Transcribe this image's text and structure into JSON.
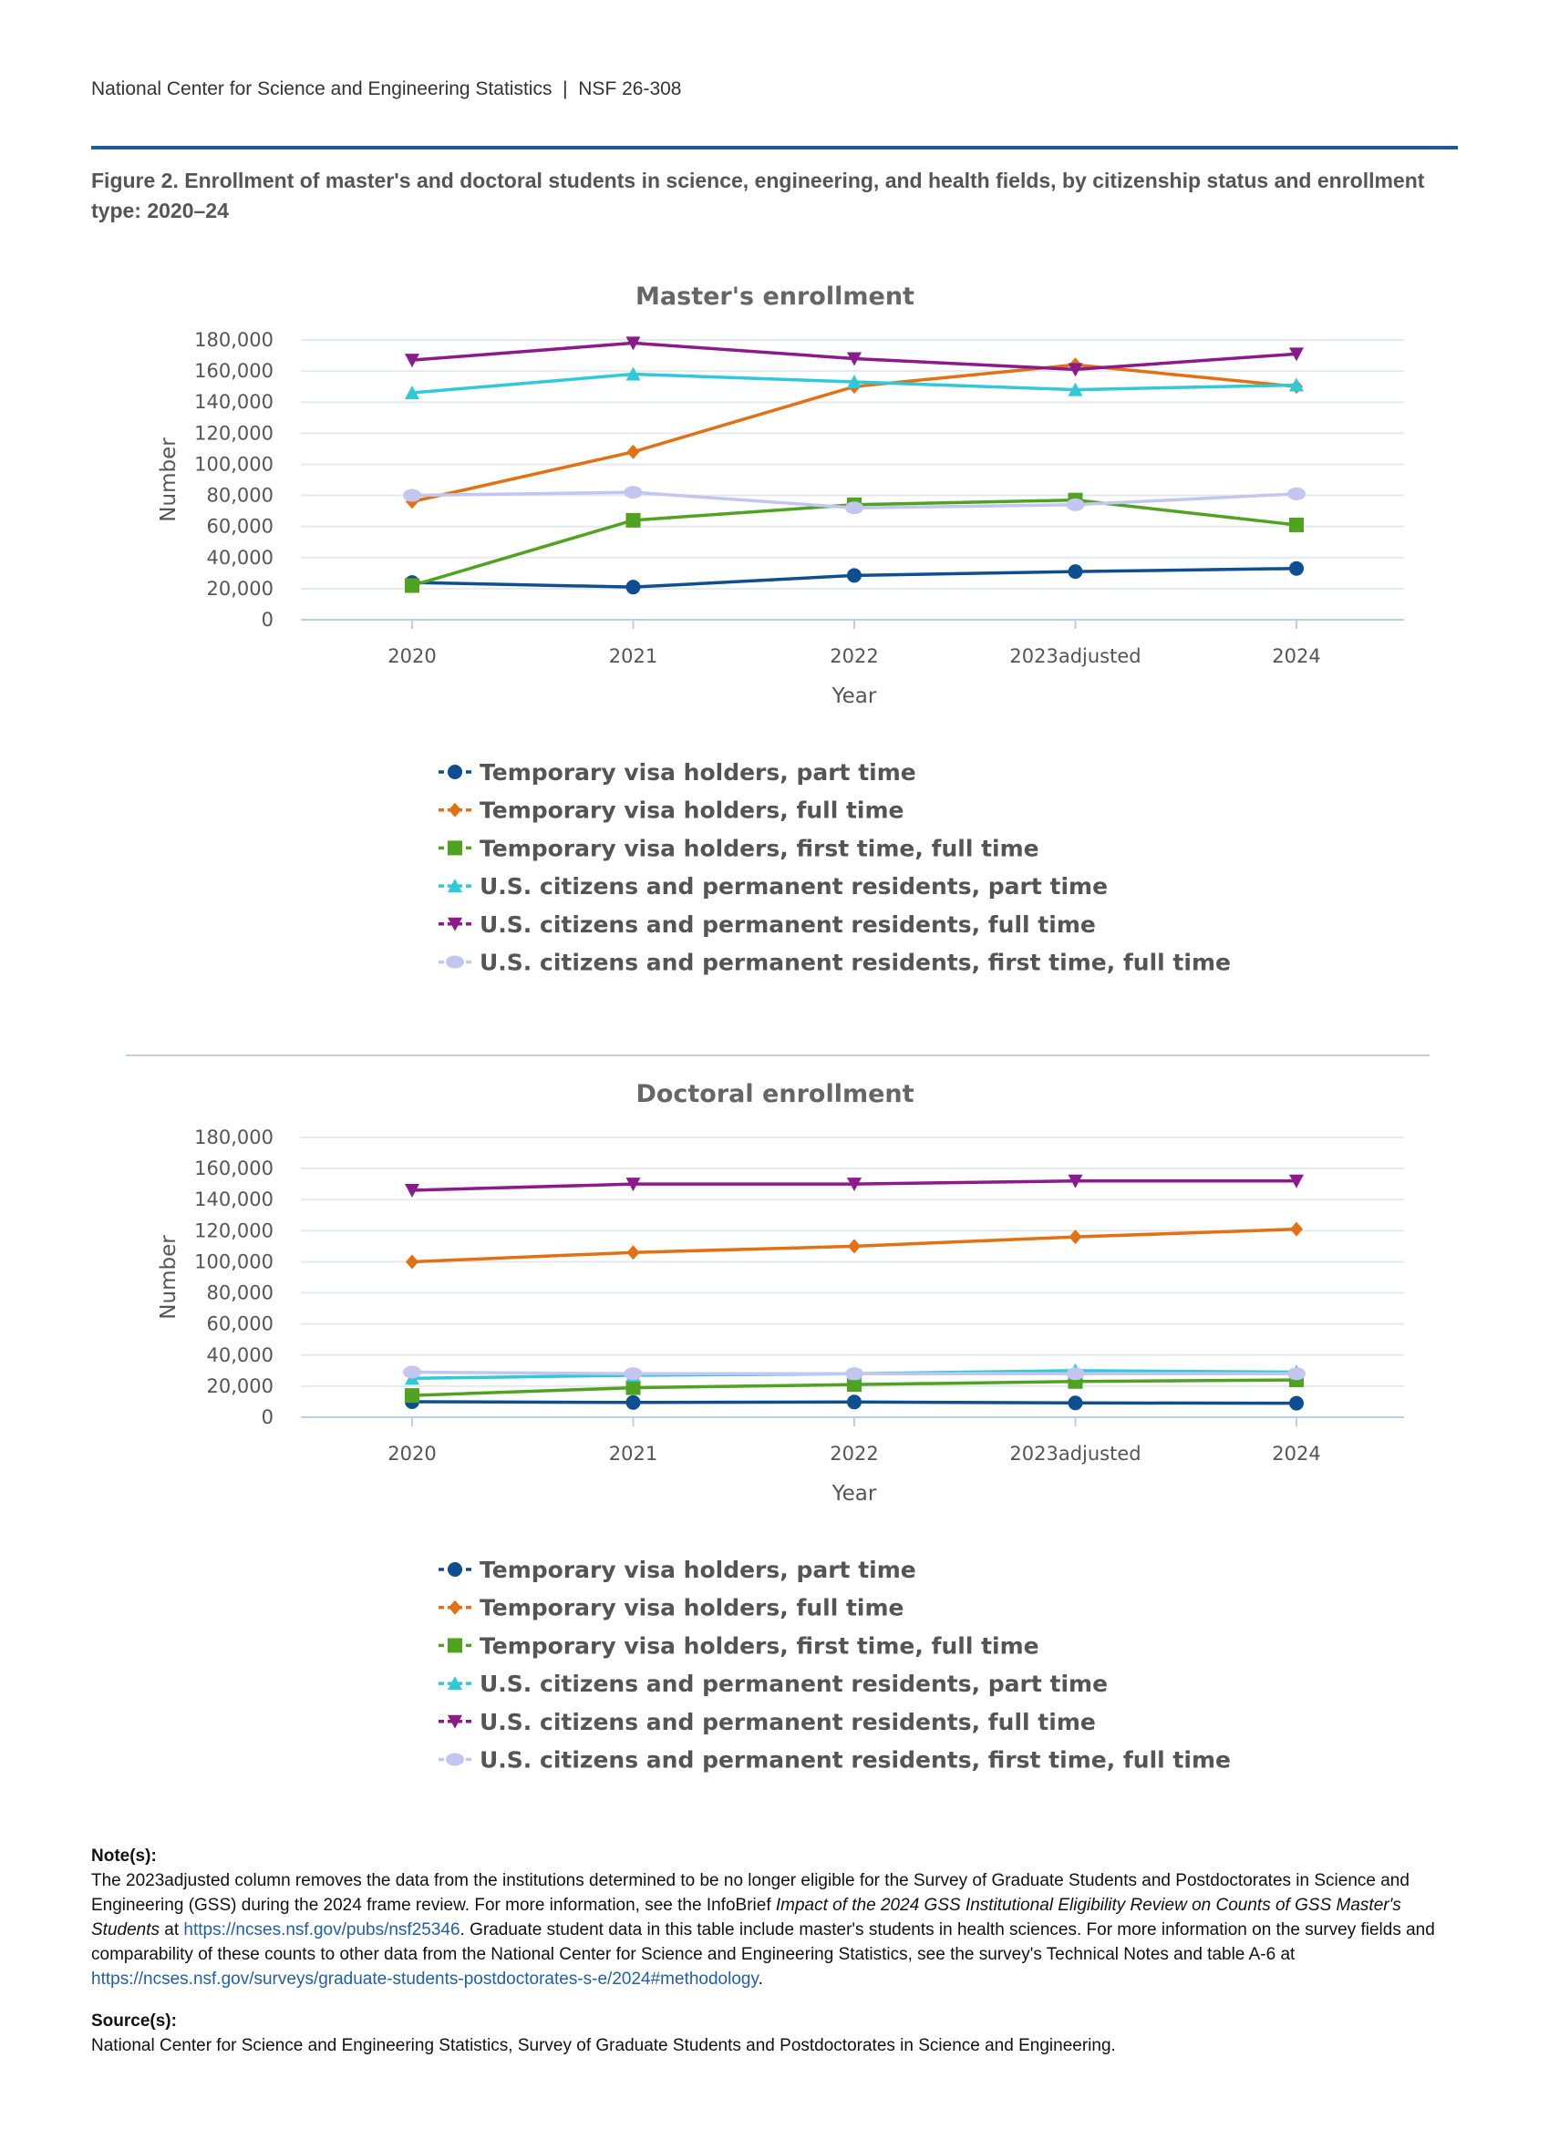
{
  "header": {
    "org": "National Center for Science and Engineering Statistics",
    "sep": "|",
    "report": "NSF 26-308"
  },
  "figure_title": "Figure 2. Enrollment of master's and doctoral students in science, engineering, and health fields, by citizenship status and enrollment type: 2020–24",
  "chart_data": [
    {
      "type": "line",
      "title": "Master's enrollment",
      "xlabel": "Year",
      "ylabel": "Number",
      "categories": [
        "2020",
        "2021",
        "2022",
        "2023adjusted",
        "2024"
      ],
      "ylim": [
        0,
        180000
      ],
      "yticks": [
        0,
        20000,
        40000,
        60000,
        80000,
        100000,
        120000,
        140000,
        160000,
        180000
      ],
      "ytick_labels": [
        "0",
        "20,000",
        "40,000",
        "60,000",
        "80,000",
        "100,000",
        "120,000",
        "140,000",
        "160,000",
        "180,000"
      ],
      "series": [
        {
          "name": "Temporary visa holders, part time",
          "color": "#0e4f91",
          "marker": "circle",
          "values": [
            24000,
            21000,
            28500,
            31000,
            33000
          ]
        },
        {
          "name": "Temporary visa holders, full time",
          "color": "#e37012",
          "marker": "diamond",
          "values": [
            76000,
            108000,
            150000,
            164000,
            150000
          ]
        },
        {
          "name": "Temporary visa holders, first time, full time",
          "color": "#4fa321",
          "marker": "square",
          "values": [
            22000,
            64000,
            74000,
            77000,
            61000
          ]
        },
        {
          "name": "U.S. citizens and permanent residents, part time",
          "color": "#2fc9d8",
          "marker": "triangle-up",
          "values": [
            146000,
            158000,
            153000,
            148000,
            151000
          ]
        },
        {
          "name": "U.S. citizens and permanent residents, full time",
          "color": "#8c1a8c",
          "marker": "triangle-down",
          "values": [
            167000,
            178000,
            168000,
            161000,
            171000
          ]
        },
        {
          "name": "U.S. citizens and permanent residents, first time, full time",
          "color": "#c2c6f0",
          "marker": "ellipse",
          "values": [
            80000,
            82000,
            72000,
            74000,
            81000
          ]
        }
      ]
    },
    {
      "type": "line",
      "title": "Doctoral enrollment",
      "xlabel": "Year",
      "ylabel": "Number",
      "categories": [
        "2020",
        "2021",
        "2022",
        "2023adjusted",
        "2024"
      ],
      "ylim": [
        0,
        180000
      ],
      "yticks": [
        0,
        20000,
        40000,
        60000,
        80000,
        100000,
        120000,
        140000,
        160000,
        180000
      ],
      "ytick_labels": [
        "0",
        "20,000",
        "40,000",
        "60,000",
        "80,000",
        "100,000",
        "120,000",
        "140,000",
        "160,000",
        "180,000"
      ],
      "series": [
        {
          "name": "Temporary visa holders, part time",
          "color": "#0e4f91",
          "marker": "circle",
          "values": [
            10000,
            9500,
            9800,
            9200,
            9000
          ]
        },
        {
          "name": "Temporary visa holders, full time",
          "color": "#e37012",
          "marker": "diamond",
          "values": [
            100000,
            106000,
            110000,
            116000,
            121000
          ]
        },
        {
          "name": "Temporary visa holders, first time, full time",
          "color": "#4fa321",
          "marker": "square",
          "values": [
            14000,
            19000,
            21000,
            23000,
            24000
          ]
        },
        {
          "name": "U.S. citizens and permanent residents, part time",
          "color": "#2fc9d8",
          "marker": "triangle-up",
          "values": [
            25000,
            27000,
            28000,
            30000,
            29000
          ]
        },
        {
          "name": "U.S. citizens and permanent residents, full time",
          "color": "#8c1a8c",
          "marker": "triangle-down",
          "values": [
            146000,
            150000,
            150000,
            152000,
            152000
          ]
        },
        {
          "name": "U.S. citizens and permanent residents, first time, full time",
          "color": "#c2c6f0",
          "marker": "ellipse",
          "values": [
            29000,
            28000,
            28000,
            28000,
            28000
          ]
        }
      ]
    }
  ],
  "notes": {
    "label": "Note(s):",
    "p1": "The 2023adjusted column removes the data from the institutions determined to be no longer eligible for the Survey of Graduate Students and Postdoctorates in Science and Engineering (GSS) during the 2024 frame review. For more information, see the InfoBrief ",
    "italic": "Impact of the 2024 GSS Institutional Eligibility Review on Counts of GSS Master's Students",
    "p2": " at ",
    "link1": "https://ncses.nsf.gov/pubs/nsf25346",
    "p3": ". Graduate student data in this table include master's students in health sciences. For more information on the survey fields and comparability of these counts to other data from the National Center for Science and Engineering Statistics, see the survey's Technical Notes and table A-6 at ",
    "link2": "https://ncses.nsf.gov/surveys/graduate-students-postdoctorates-s-e/2024#methodology",
    "p4": "."
  },
  "source": {
    "label": "Source(s):",
    "text": "National Center for Science and Engineering Statistics, Survey of Graduate Students and Postdoctorates in Science and Engineering."
  }
}
